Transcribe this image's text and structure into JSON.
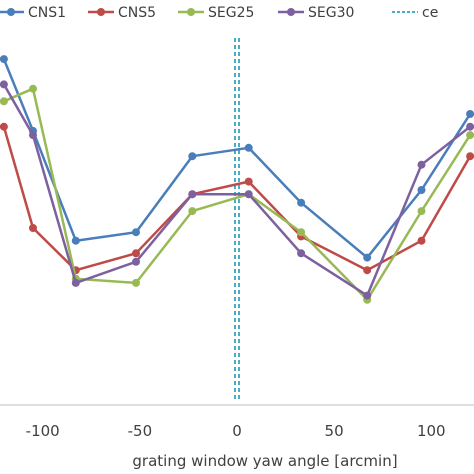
{
  "chart_data": {
    "type": "line",
    "xlabel": "grating window yaw angle [arcmin]",
    "ylabel": "",
    "xlim": [
      -122,
      122
    ],
    "ylim": [
      0,
      1
    ],
    "grid": false,
    "legend_position": "top",
    "x_ticks": [
      {
        "value": -100,
        "label": "-100"
      },
      {
        "value": -50,
        "label": "-50"
      },
      {
        "value": 0,
        "label": "0"
      },
      {
        "value": 50,
        "label": "50"
      },
      {
        "value": 100,
        "label": "100"
      }
    ],
    "x": [
      -120,
      -105,
      -83,
      -52,
      -23,
      6,
      33,
      67,
      95,
      120
    ],
    "series": [
      {
        "name": "CNS1",
        "color": "#4a7ebb",
        "values": [
          0.76,
          0.59,
          0.33,
          0.35,
          0.53,
          0.55,
          0.42,
          0.29,
          0.45,
          0.63
        ]
      },
      {
        "name": "CNS5",
        "color": "#be4b48",
        "values": [
          0.6,
          0.36,
          0.26,
          0.3,
          0.44,
          0.47,
          0.34,
          0.26,
          0.33,
          0.53
        ]
      },
      {
        "name": "SEG25",
        "color": "#98b954",
        "values": [
          0.66,
          0.69,
          0.24,
          0.23,
          0.4,
          0.44,
          0.35,
          0.19,
          0.4,
          0.58
        ]
      },
      {
        "name": "SEG30",
        "color": "#7d60a0",
        "values": [
          0.7,
          0.58,
          0.23,
          0.28,
          0.44,
          0.44,
          0.3,
          0.2,
          0.51,
          0.6
        ]
      }
    ],
    "legend": [
      {
        "label": "CNS1",
        "color": "#4a7ebb",
        "style": "solid-marker"
      },
      {
        "label": "CNS5",
        "color": "#be4b48",
        "style": "solid-marker"
      },
      {
        "label": "SEG25",
        "color": "#98b954",
        "style": "solid-marker"
      },
      {
        "label": "SEG30",
        "color": "#7d60a0",
        "style": "solid-marker"
      },
      {
        "label": "ce",
        "color": "#4bacc6",
        "style": "dashed"
      }
    ],
    "center_line": {
      "x": 0,
      "color": "#4bacc6",
      "style": "double-dashed"
    }
  }
}
